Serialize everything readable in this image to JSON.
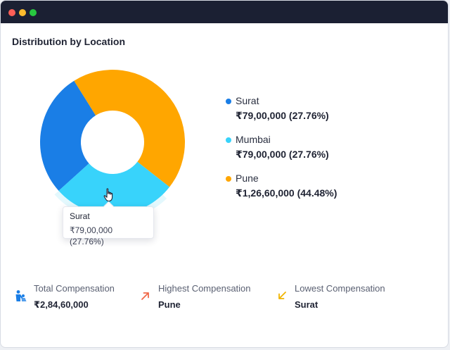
{
  "card": {
    "title": "Distribution by Location"
  },
  "chart_data": {
    "type": "pie",
    "style": "donut",
    "categories": [
      "Surat",
      "Mumbai",
      "Pune"
    ],
    "values": [
      7900000,
      7900000,
      12660000
    ],
    "display_values": [
      "₹79,00,000 (27.76%)",
      "₹79,00,000 (27.76%)",
      "₹1,26,60,000 (44.48%)"
    ],
    "percentages": [
      27.76,
      27.76,
      44.48
    ],
    "colors": [
      "#1a7ee6",
      "#38d3fb",
      "#ffa600"
    ],
    "hover_color": "#e3f8fd",
    "legend_position": "right"
  },
  "tooltip": {
    "label": "Surat",
    "value": "₹79,00,000 (27.76%)"
  },
  "legend": {
    "items": [
      {
        "name": "Surat",
        "value": "₹79,00,000 (27.76%)",
        "color": "#1a7ee6"
      },
      {
        "name": "Mumbai",
        "value": "₹79,00,000 (27.76%)",
        "color": "#38d3fb"
      },
      {
        "name": "Pune",
        "value": "₹1,26,60,000 (44.48%)",
        "color": "#ffa600"
      }
    ]
  },
  "stats": {
    "total": {
      "label": "Total Compensation",
      "value": "₹2,84,60,000",
      "icon": "people-icon",
      "color": "#1a7ee6"
    },
    "highest": {
      "label": "Highest Compensation",
      "value": "Pune",
      "icon": "arrow-up-right-icon",
      "color": "#f06a4a"
    },
    "lowest": {
      "label": "Lowest Compensation",
      "value": "Surat",
      "icon": "arrow-down-left-icon",
      "color": "#f0b400"
    }
  }
}
